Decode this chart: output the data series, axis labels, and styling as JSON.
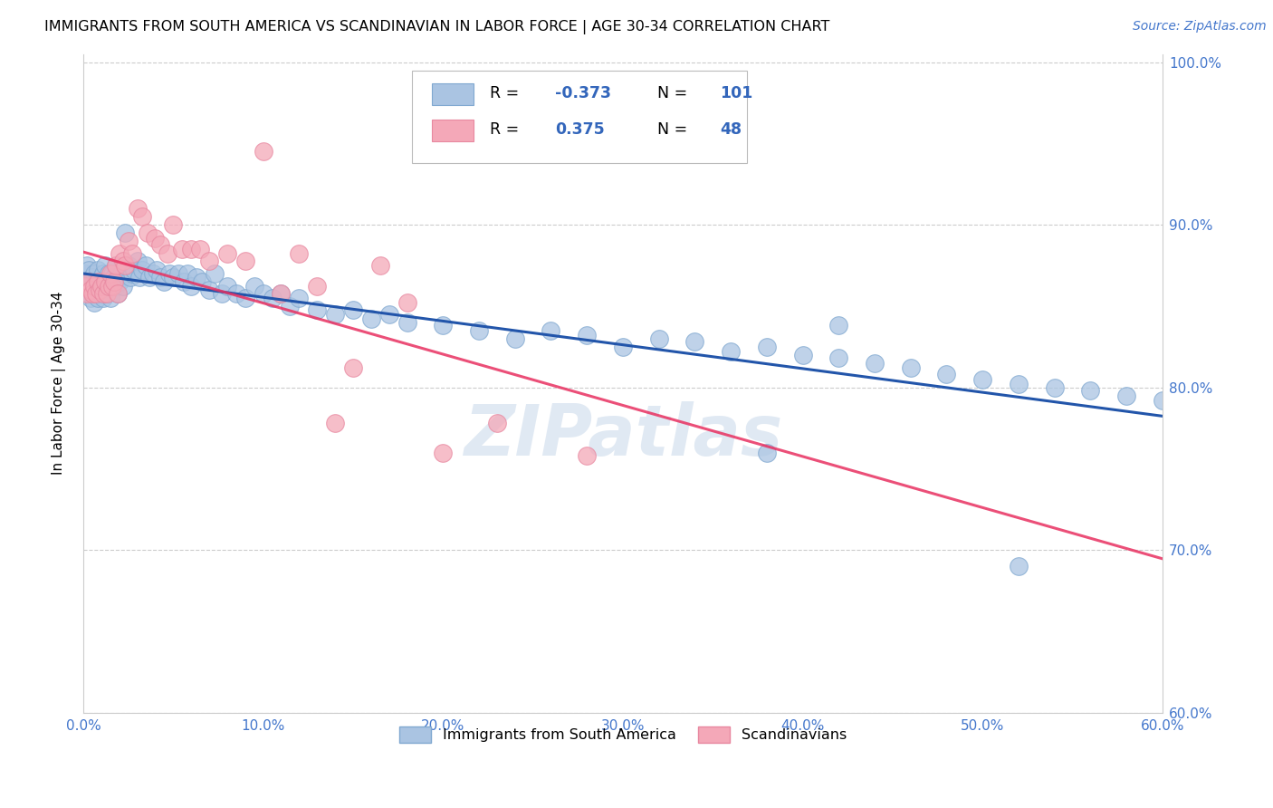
{
  "title": "IMMIGRANTS FROM SOUTH AMERICA VS SCANDINAVIAN IN LABOR FORCE | AGE 30-34 CORRELATION CHART",
  "source": "Source: ZipAtlas.com",
  "ylabel": "In Labor Force | Age 30-34",
  "xlim": [
    0.0,
    0.6
  ],
  "ylim": [
    0.6,
    1.005
  ],
  "xticks": [
    0.0,
    0.1,
    0.2,
    0.3,
    0.4,
    0.5,
    0.6
  ],
  "yticks": [
    0.6,
    0.7,
    0.8,
    0.9,
    1.0
  ],
  "blue_R": -0.373,
  "blue_N": 101,
  "pink_R": 0.375,
  "pink_N": 48,
  "blue_color": "#aac4e2",
  "pink_color": "#f4a8b8",
  "blue_edge_color": "#80a8d0",
  "pink_edge_color": "#e888a0",
  "blue_line_color": "#2255aa",
  "pink_line_color": "#e83060",
  "legend_label_blue": "Immigrants from South America",
  "legend_label_pink": "Scandinavians",
  "blue_points_x": [
    0.001,
    0.002,
    0.002,
    0.003,
    0.003,
    0.004,
    0.004,
    0.005,
    0.005,
    0.006,
    0.006,
    0.007,
    0.007,
    0.008,
    0.008,
    0.009,
    0.009,
    0.01,
    0.01,
    0.011,
    0.011,
    0.012,
    0.012,
    0.013,
    0.013,
    0.014,
    0.015,
    0.015,
    0.016,
    0.017,
    0.018,
    0.018,
    0.019,
    0.02,
    0.021,
    0.022,
    0.023,
    0.024,
    0.025,
    0.026,
    0.027,
    0.028,
    0.03,
    0.031,
    0.033,
    0.035,
    0.037,
    0.039,
    0.041,
    0.043,
    0.045,
    0.048,
    0.05,
    0.053,
    0.056,
    0.058,
    0.06,
    0.063,
    0.066,
    0.07,
    0.073,
    0.077,
    0.08,
    0.085,
    0.09,
    0.095,
    0.1,
    0.105,
    0.11,
    0.115,
    0.12,
    0.13,
    0.14,
    0.15,
    0.16,
    0.17,
    0.18,
    0.2,
    0.22,
    0.24,
    0.26,
    0.28,
    0.3,
    0.32,
    0.34,
    0.36,
    0.38,
    0.4,
    0.42,
    0.44,
    0.46,
    0.48,
    0.5,
    0.52,
    0.54,
    0.56,
    0.58,
    0.6,
    0.38,
    0.42,
    0.52
  ],
  "blue_points_y": [
    0.87,
    0.875,
    0.86,
    0.872,
    0.858,
    0.865,
    0.855,
    0.868,
    0.862,
    0.87,
    0.852,
    0.865,
    0.858,
    0.872,
    0.855,
    0.865,
    0.862,
    0.868,
    0.858,
    0.87,
    0.855,
    0.862,
    0.875,
    0.858,
    0.865,
    0.87,
    0.862,
    0.855,
    0.87,
    0.868,
    0.862,
    0.875,
    0.858,
    0.865,
    0.87,
    0.862,
    0.895,
    0.872,
    0.875,
    0.868,
    0.87,
    0.872,
    0.878,
    0.868,
    0.872,
    0.875,
    0.868,
    0.87,
    0.872,
    0.868,
    0.865,
    0.87,
    0.868,
    0.87,
    0.865,
    0.87,
    0.862,
    0.868,
    0.865,
    0.86,
    0.87,
    0.858,
    0.862,
    0.858,
    0.855,
    0.862,
    0.858,
    0.855,
    0.858,
    0.85,
    0.855,
    0.848,
    0.845,
    0.848,
    0.842,
    0.845,
    0.84,
    0.838,
    0.835,
    0.83,
    0.835,
    0.832,
    0.825,
    0.83,
    0.828,
    0.822,
    0.825,
    0.82,
    0.818,
    0.815,
    0.812,
    0.808,
    0.805,
    0.802,
    0.8,
    0.798,
    0.795,
    0.792,
    0.76,
    0.838,
    0.69
  ],
  "pink_points_x": [
    0.001,
    0.002,
    0.003,
    0.004,
    0.005,
    0.006,
    0.007,
    0.008,
    0.009,
    0.01,
    0.011,
    0.012,
    0.013,
    0.014,
    0.015,
    0.016,
    0.017,
    0.018,
    0.019,
    0.02,
    0.022,
    0.023,
    0.025,
    0.027,
    0.03,
    0.033,
    0.036,
    0.04,
    0.043,
    0.047,
    0.05,
    0.055,
    0.06,
    0.065,
    0.07,
    0.08,
    0.09,
    0.1,
    0.11,
    0.12,
    0.13,
    0.14,
    0.15,
    0.165,
    0.18,
    0.2,
    0.23,
    0.28
  ],
  "pink_points_y": [
    0.862,
    0.858,
    0.865,
    0.86,
    0.858,
    0.862,
    0.858,
    0.865,
    0.86,
    0.862,
    0.858,
    0.865,
    0.858,
    0.862,
    0.87,
    0.862,
    0.865,
    0.875,
    0.858,
    0.882,
    0.878,
    0.875,
    0.89,
    0.882,
    0.91,
    0.905,
    0.895,
    0.892,
    0.888,
    0.882,
    0.9,
    0.885,
    0.885,
    0.885,
    0.878,
    0.882,
    0.878,
    0.945,
    0.858,
    0.882,
    0.862,
    0.778,
    0.812,
    0.875,
    0.852,
    0.76,
    0.778,
    0.758
  ],
  "watermark": "ZIPatlas",
  "title_fontsize": 11.5,
  "axis_label_fontsize": 11,
  "tick_fontsize": 11,
  "source_fontsize": 10
}
